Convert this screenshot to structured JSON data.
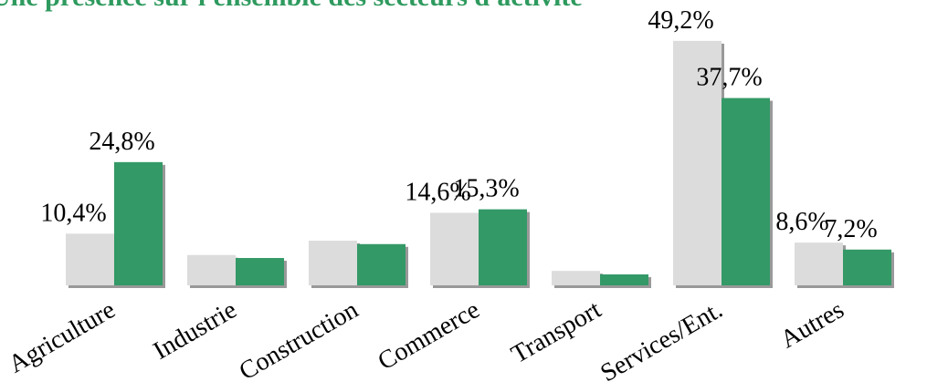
{
  "chart_data": {
    "type": "bar",
    "title": "Une présence sur l'ensemble des secteurs d'activité",
    "categories": [
      "Agriculture",
      "Industrie",
      "Construction",
      "Commerce",
      "Transport",
      "Services/Ent.",
      "Autres"
    ],
    "series": [
      {
        "color": "#dcdcdc",
        "values": [
          10.4,
          6.1,
          9.0,
          14.6,
          2.9,
          49.2,
          8.6
        ],
        "value_labels": [
          "10,4%",
          null,
          null,
          "14,6%",
          null,
          "49,2%",
          "8,6%"
        ]
      },
      {
        "color": "#339966",
        "values": [
          24.8,
          5.5,
          8.3,
          15.3,
          2.2,
          37.7,
          7.2
        ],
        "value_labels": [
          "24,8%",
          null,
          null,
          "15,3%",
          null,
          "37,7%",
          "7,2%"
        ]
      }
    ],
    "ylim": [
      0,
      50
    ]
  }
}
